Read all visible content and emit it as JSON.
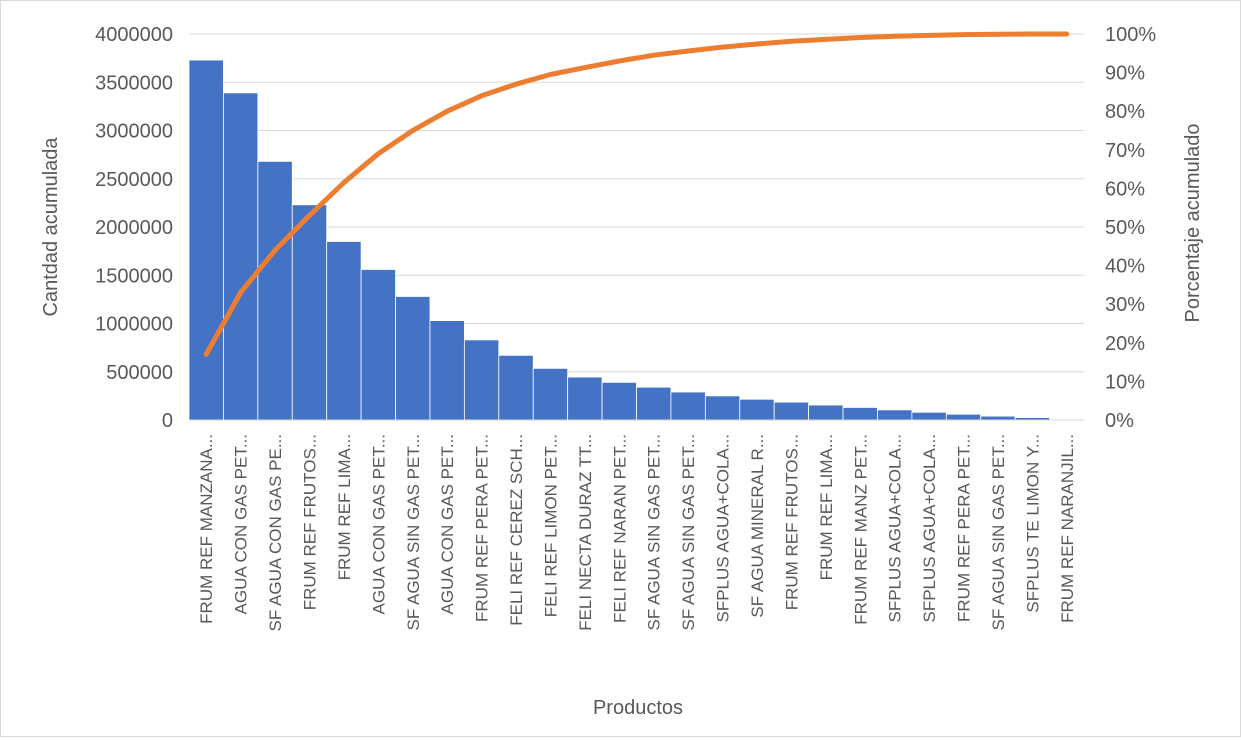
{
  "chart_data": {
    "type": "bar",
    "combo": "pareto",
    "title": "",
    "xlabel": "Productos",
    "ylabel": "Cantdad acumulada",
    "y2label": "Porcentaje acumulado",
    "ylim": [
      0,
      4000000
    ],
    "y2lim": [
      0,
      100
    ],
    "yticks": [
      "0",
      "500000",
      "1000000",
      "1500000",
      "2000000",
      "2500000",
      "3000000",
      "3500000",
      "4000000"
    ],
    "y2ticks": [
      "0%",
      "10%",
      "20%",
      "30%",
      "40%",
      "50%",
      "60%",
      "70%",
      "80%",
      "90%",
      "100%"
    ],
    "grid": true,
    "legend": "none",
    "categories": [
      "FRUM REF MANZANA...",
      "AGUA CON GAS PET...",
      "SF AGUA CON GAS PE...",
      "FRUM REF FRUTOS...",
      "FRUM REF LIMA...",
      "AGUA CON GAS PET...",
      "SF AGUA SIN GAS PET...",
      "AGUA CON GAS PET...",
      "FRUM REF PERA PET...",
      "FELI REF CEREZ SCH...",
      "FELI REF LIMON PET...",
      "FELI NECTA DURAZ TT...",
      "FELI REF NARAN PET...",
      "SF AGUA SIN GAS PET...",
      "SF AGUA SIN GAS PET...",
      "SFPLUS AGUA+COLA...",
      "SF AGUA MINERAL R...",
      "FRUM REF FRUTOS...",
      "FRUM REF LIMA...",
      "FRUM REF MANZ PET...",
      "SFPLUS AGUA+COLA...",
      "SFPLUS AGUA+COLA...",
      "FRUM REF PERA PET...",
      "SF AGUA SIN GAS PET...",
      "SFPLUS TE LIMON Y...",
      "FRUM REF NARANJIL..."
    ],
    "series": [
      {
        "type": "bar",
        "color": "#4472c4",
        "values": [
          3730000,
          3390000,
          2680000,
          2230000,
          1850000,
          1560000,
          1280000,
          1030000,
          830000,
          670000,
          535000,
          445000,
          390000,
          340000,
          290000,
          250000,
          215000,
          185000,
          155000,
          130000,
          105000,
          80000,
          60000,
          40000,
          25000,
          0
        ]
      },
      {
        "type": "line",
        "axis": "secondary",
        "color": "#ed7d31",
        "values": [
          17,
          33,
          44,
          53,
          61.5,
          69,
          75,
          80,
          84,
          87,
          89.5,
          91.3,
          93,
          94.5,
          95.6,
          96.6,
          97.4,
          98.1,
          98.6,
          99.1,
          99.4,
          99.65,
          99.85,
          99.95,
          100,
          100
        ]
      }
    ]
  }
}
